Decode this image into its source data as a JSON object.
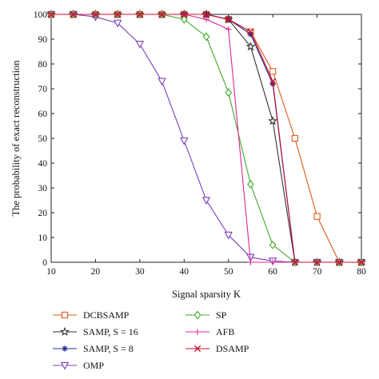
{
  "chart_data": {
    "type": "line",
    "xlabel": "Signal sparsity K",
    "ylabel": "The probability of exact reconstruction",
    "xlim": [
      10,
      80
    ],
    "ylim": [
      0,
      100
    ],
    "xticks": [
      10,
      20,
      30,
      40,
      50,
      60,
      70,
      80
    ],
    "yticks": [
      0,
      10,
      20,
      30,
      40,
      50,
      60,
      70,
      80,
      90,
      100
    ],
    "x": [
      10,
      15,
      20,
      25,
      30,
      35,
      40,
      45,
      50,
      55,
      60,
      65,
      70,
      75,
      80
    ],
    "legend_position": "below",
    "series": [
      {
        "name": "DCBSAMP",
        "color": "#e05a1a",
        "marker": "square",
        "values": [
          100,
          100,
          100,
          100,
          100,
          100,
          100,
          100,
          98,
          93,
          77,
          50,
          18.5,
          0,
          0
        ]
      },
      {
        "name": "SAMP, S = 16",
        "color": "#333333",
        "marker": "star",
        "values": [
          100,
          100,
          100,
          100,
          100,
          100,
          100,
          100,
          98,
          87,
          57,
          0,
          0,
          0,
          0
        ]
      },
      {
        "name": "SAMP, S = 8",
        "color": "#2b2f8f",
        "marker": "asterisk",
        "values": [
          100,
          100,
          100,
          100,
          100,
          100,
          100,
          100,
          98,
          92,
          72,
          0,
          0,
          0,
          0
        ]
      },
      {
        "name": "OMP",
        "color": "#7a3fb8",
        "marker": "triangle-down",
        "values": [
          100,
          100,
          99,
          96.5,
          88,
          73,
          49,
          25,
          11,
          2,
          0.5,
          0,
          0,
          0,
          0
        ]
      },
      {
        "name": "SP",
        "color": "#3faa2a",
        "marker": "diamond",
        "values": [
          100,
          100,
          100,
          100,
          100,
          100,
          98,
          91,
          68.5,
          31.5,
          7,
          0,
          0,
          0,
          0
        ]
      },
      {
        "name": "AFB",
        "color": "#e0258f",
        "marker": "plus",
        "values": [
          100,
          100,
          100,
          100,
          100,
          100,
          100,
          98,
          94,
          0,
          0,
          0,
          0,
          0,
          0
        ]
      },
      {
        "name": "DSAMP",
        "color": "#c4122e",
        "marker": "x",
        "values": [
          100,
          100,
          100,
          100,
          100,
          100,
          100,
          100,
          98,
          93,
          73,
          0,
          0,
          0,
          0
        ]
      }
    ]
  }
}
